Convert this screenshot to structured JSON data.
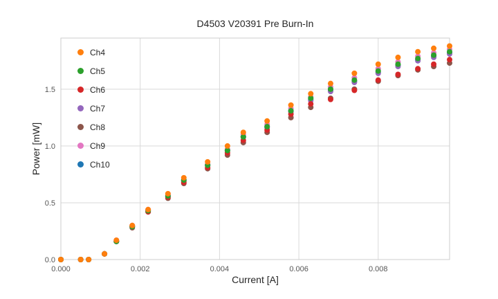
{
  "title": "D4503 V20391 Pre Burn-In",
  "chart_data": {
    "type": "scatter",
    "title": "D4503 V20391 Pre Burn-In",
    "xlabel": "Current [A]",
    "ylabel": "Power [mW]",
    "xlim": [
      0.0,
      0.0098
    ],
    "ylim": [
      0.0,
      1.95
    ],
    "grid": true,
    "legend_position": "upper-left",
    "x_ticks": {
      "values": [
        0.0,
        0.002,
        0.004,
        0.006,
        0.008
      ],
      "labels": [
        "0.000",
        "0.002",
        "0.004",
        "0.006",
        "0.008"
      ]
    },
    "y_ticks": {
      "values": [
        0.0,
        0.5,
        1.0,
        1.5
      ],
      "labels": [
        "0.0",
        "0.5",
        "1.0",
        "1.5"
      ]
    },
    "x": [
      0.0,
      0.0005,
      0.0007,
      0.0011,
      0.0014,
      0.0018,
      0.0022,
      0.0027,
      0.0031,
      0.0037,
      0.0042,
      0.0046,
      0.0052,
      0.0058,
      0.0063,
      0.0068,
      0.0074,
      0.008,
      0.0085,
      0.009,
      0.0094,
      0.0098
    ],
    "series": [
      {
        "name": "Ch4",
        "color": "#ff7f0e",
        "values": [
          0.0,
          0.0,
          0.0,
          0.05,
          0.17,
          0.3,
          0.44,
          0.58,
          0.72,
          0.86,
          1.0,
          1.12,
          1.22,
          1.36,
          1.46,
          1.55,
          1.64,
          1.72,
          1.78,
          1.83,
          1.86,
          1.88
        ]
      },
      {
        "name": "Ch5",
        "color": "#2ca02c",
        "values": [
          0.0,
          0.0,
          0.0,
          0.05,
          0.16,
          0.29,
          0.43,
          0.56,
          0.7,
          0.83,
          0.96,
          1.08,
          1.17,
          1.31,
          1.42,
          1.5,
          1.58,
          1.66,
          1.72,
          1.77,
          1.8,
          1.83
        ]
      },
      {
        "name": "Ch6",
        "color": "#d62728",
        "values": [
          0.0,
          0.0,
          0.0,
          0.05,
          0.16,
          0.29,
          0.42,
          0.55,
          0.68,
          0.81,
          0.94,
          1.05,
          1.14,
          1.28,
          1.37,
          1.41,
          1.49,
          1.58,
          1.63,
          1.68,
          1.72,
          1.76
        ]
      },
      {
        "name": "Ch7",
        "color": "#9467bd",
        "values": [
          0.0,
          0.0,
          0.0,
          0.05,
          0.16,
          0.29,
          0.43,
          0.56,
          0.69,
          0.83,
          0.96,
          1.08,
          1.16,
          1.3,
          1.4,
          1.48,
          1.56,
          1.64,
          1.7,
          1.75,
          1.78,
          1.81
        ]
      },
      {
        "name": "Ch8",
        "color": "#8c564b",
        "values": [
          0.0,
          0.0,
          0.0,
          0.05,
          0.16,
          0.28,
          0.42,
          0.54,
          0.67,
          0.8,
          0.92,
          1.03,
          1.12,
          1.25,
          1.34,
          1.42,
          1.5,
          1.57,
          1.62,
          1.67,
          1.7,
          1.73
        ]
      },
      {
        "name": "Ch9",
        "color": "#e377c2",
        "values": [
          0.0,
          0.0,
          0.0,
          0.05,
          0.17,
          0.3,
          0.44,
          0.57,
          0.7,
          0.84,
          0.97,
          1.1,
          1.19,
          1.33,
          1.43,
          1.52,
          1.6,
          1.68,
          1.74,
          1.79,
          1.82,
          1.85
        ]
      },
      {
        "name": "Ch10",
        "color": "#1f77b4",
        "values": [
          0.0,
          0.0,
          0.0,
          0.05,
          0.16,
          0.29,
          0.43,
          0.56,
          0.7,
          0.83,
          0.96,
          1.08,
          1.17,
          1.31,
          1.41,
          1.49,
          1.57,
          1.65,
          1.71,
          1.76,
          1.79,
          1.82
        ]
      }
    ],
    "style": {
      "grid_color": "#d9d9d9",
      "border_color": "#cccccc",
      "tick_label_color": "#555555",
      "marker_radius": 4
    }
  }
}
